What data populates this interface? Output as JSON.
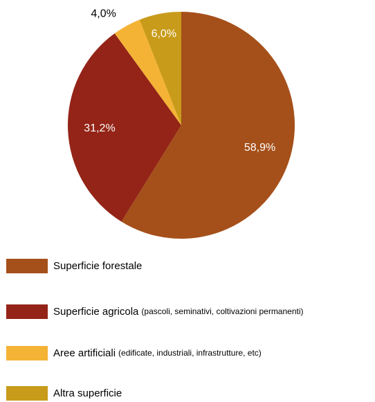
{
  "chart_data": {
    "type": "pie",
    "title": "",
    "slices": [
      {
        "name": "Superficie forestale",
        "detail": "",
        "value": 58.9,
        "label": "58,9%",
        "color": "#A5501A",
        "label_color": "#ffffff"
      },
      {
        "name": "Superficie agricola",
        "detail": "(pascoli, seminativi, coltivazioni permanenti)",
        "value": 31.2,
        "label": "31,2%",
        "color": "#932417",
        "label_color": "#ffffff"
      },
      {
        "name": "Aree artificiali",
        "detail": "(edificate, industriali, infrastrutture, etc)",
        "value": 4.0,
        "label": "4,0%",
        "color": "#F5B335",
        "label_color": "#000000"
      },
      {
        "name": "Altra superficie",
        "detail": "",
        "value": 6.0,
        "label": "6,0%",
        "color": "#C89B1A",
        "label_color": "#ffffff"
      }
    ],
    "legend_position": "bottom-left"
  }
}
